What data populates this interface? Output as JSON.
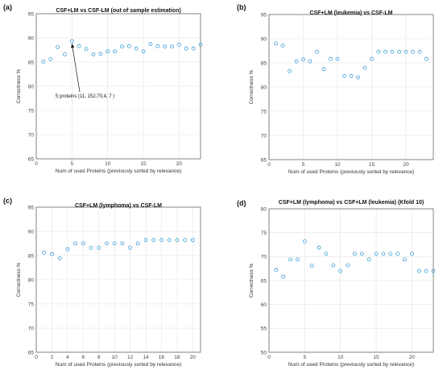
{
  "chart_data": [
    {
      "type": "scatter",
      "panel_label": "(a)",
      "title": "CSF+LM vs CSF-LM (out of sample estimation)",
      "xlabel": "Num of used Proteins (previously sorted by relevance)",
      "ylabel": "Correctness %",
      "xlim": [
        0,
        23
      ],
      "ylim": [
        65,
        95
      ],
      "xticks": [
        0,
        5,
        10,
        15,
        20
      ],
      "yticks": [
        65,
        70,
        75,
        80,
        85,
        90,
        95
      ],
      "grid": true,
      "x": [
        1,
        2,
        3,
        4,
        5,
        6,
        7,
        8,
        9,
        10,
        11,
        12,
        13,
        14,
        15,
        16,
        17,
        18,
        19,
        20,
        21,
        22,
        23
      ],
      "y": [
        85.1,
        85.6,
        88.1,
        86.6,
        89.3,
        88.3,
        87.7,
        86.6,
        86.7,
        87.2,
        87.2,
        88.2,
        88.3,
        87.8,
        87.2,
        88.7,
        88.3,
        88.2,
        88.2,
        88.6,
        87.8,
        87.8,
        88.6
      ],
      "annotation": {
        "text": "5 proteins  (11, 152,70,4, 7 )",
        "x": 5,
        "y": 89.3
      }
    },
    {
      "type": "scatter",
      "panel_label": "(b)",
      "title": "CSF+LM (leukemia) vs CSF-LM",
      "xlabel": "Num of used Proteins (previously sorted by relevance)",
      "ylabel": "Correctness %",
      "xlim": [
        0,
        24
      ],
      "ylim": [
        65,
        95
      ],
      "xticks": [
        0,
        5,
        10,
        15,
        20
      ],
      "yticks": [
        65,
        70,
        75,
        80,
        85,
        90,
        95
      ],
      "grid": true,
      "x": [
        1,
        2,
        3,
        4,
        5,
        6,
        7,
        8,
        9,
        10,
        11,
        12,
        13,
        14,
        15,
        16,
        17,
        18,
        19,
        20,
        21,
        22,
        23
      ],
      "y": [
        89.0,
        88.6,
        83.3,
        85.3,
        85.7,
        85.3,
        87.3,
        83.7,
        85.8,
        85.8,
        82.3,
        82.3,
        82.0,
        84.0,
        85.8,
        87.3,
        87.3,
        87.3,
        87.3,
        87.3,
        87.3,
        87.3,
        85.8
      ]
    },
    {
      "type": "scatter",
      "panel_label": "(c)",
      "title": "CSF+LM (lymphoma) vs CSF-LM",
      "xlabel": "Num of used Proteins (previously sorted by relevance)",
      "ylabel": "Correctness %",
      "xlim": [
        0,
        21
      ],
      "ylim": [
        65,
        95
      ],
      "xticks": [
        0,
        2,
        4,
        6,
        8,
        10,
        12,
        14,
        16,
        18,
        20
      ],
      "yticks": [
        65,
        70,
        75,
        80,
        85,
        90,
        95
      ],
      "grid": true,
      "x": [
        1,
        2,
        3,
        4,
        5,
        6,
        7,
        8,
        9,
        10,
        11,
        12,
        13,
        14,
        15,
        16,
        17,
        18,
        19,
        20
      ],
      "y": [
        85.6,
        85.3,
        84.4,
        86.3,
        87.5,
        87.5,
        86.6,
        86.6,
        87.5,
        87.5,
        87.5,
        86.6,
        87.5,
        88.2,
        88.2,
        88.2,
        88.2,
        88.2,
        88.2,
        88.2
      ]
    },
    {
      "type": "scatter",
      "panel_label": "(d)",
      "title": "CSF+LM (lymphoma) vs CSF+LM (leukemia)  (Kfold 10)",
      "xlabel": "Num of used Proteins (previously sorted by relevance)",
      "ylabel": "Correctness %",
      "xlim": [
        0,
        23
      ],
      "ylim": [
        50,
        80
      ],
      "xticks": [
        0,
        5,
        10,
        15,
        20
      ],
      "yticks": [
        50,
        55,
        60,
        65,
        70,
        75,
        80
      ],
      "grid": true,
      "x": [
        1,
        2,
        3,
        4,
        5,
        6,
        7,
        8,
        9,
        10,
        11,
        12,
        13,
        14,
        15,
        16,
        17,
        18,
        19,
        20,
        21,
        22,
        23
      ],
      "y": [
        67.2,
        65.8,
        69.4,
        69.4,
        73.2,
        68.1,
        71.9,
        70.6,
        68.2,
        67.0,
        68.2,
        70.6,
        70.6,
        69.4,
        70.6,
        70.6,
        70.6,
        70.6,
        69.4,
        70.6,
        67.0,
        67.0,
        67.0
      ]
    }
  ]
}
